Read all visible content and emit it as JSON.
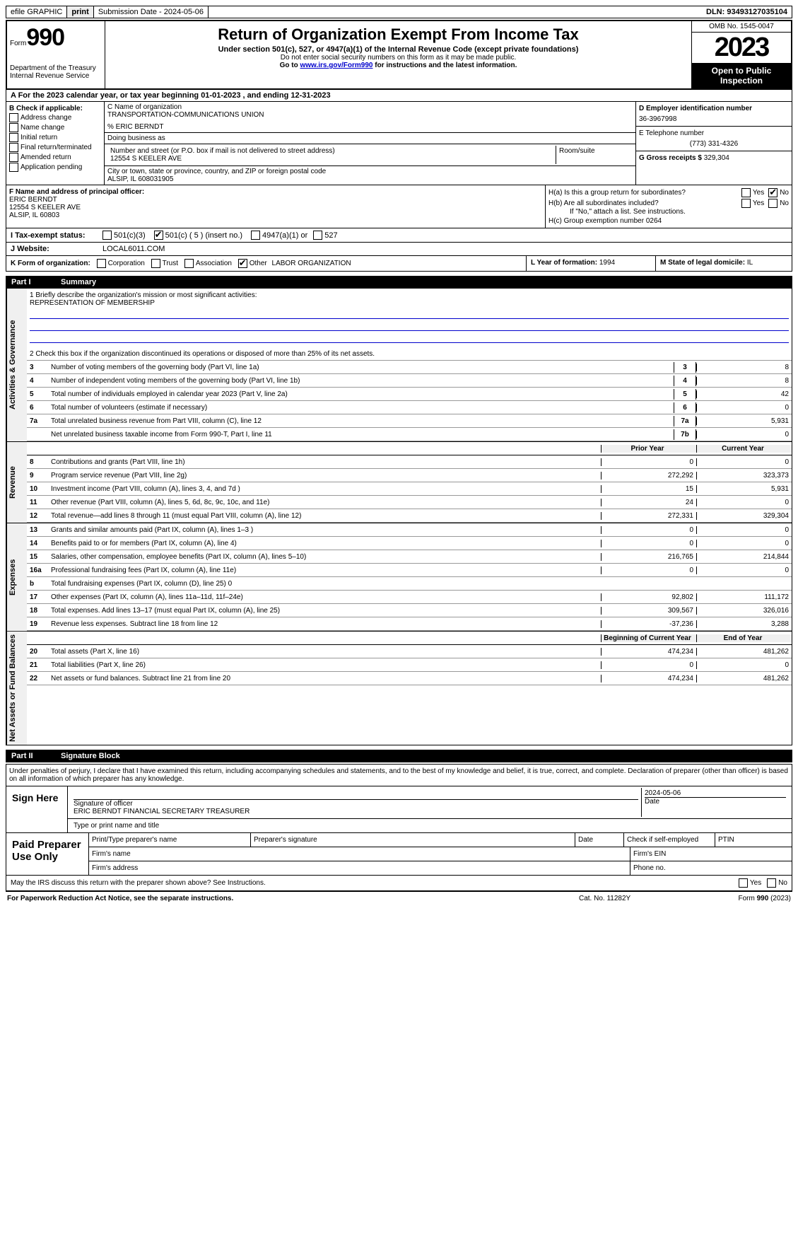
{
  "topbar": {
    "efile": "efile GRAPHIC",
    "print": "print",
    "submission": "Submission Date - 2024-05-06",
    "dln": "DLN: 93493127035104"
  },
  "header": {
    "form_label": "Form",
    "form_number": "990",
    "dept": "Department of the Treasury\nInternal Revenue Service",
    "title": "Return of Organization Exempt From Income Tax",
    "subtitle": "Under section 501(c), 527, or 4947(a)(1) of the Internal Revenue Code (except private foundations)",
    "warn1": "Do not enter social security numbers on this form as it may be made public.",
    "warn2_pre": "Go to ",
    "warn2_link": "www.irs.gov/Form990",
    "warn2_post": " for instructions and the latest information.",
    "omb": "OMB No. 1545-0047",
    "year": "2023",
    "open_pub": "Open to Public Inspection"
  },
  "row_a": "A For the 2023 calendar year, or tax year beginning 01-01-2023   , and ending 12-31-2023",
  "box_b": {
    "label": "B Check if applicable:",
    "items": [
      "Address change",
      "Name change",
      "Initial return",
      "Final return/terminated",
      "Amended return",
      "Application pending"
    ]
  },
  "box_c": {
    "name_label": "C Name of organization",
    "name": "TRANSPORTATION-COMMUNICATIONS UNION",
    "care_of": "% ERIC BERNDT",
    "dba_label": "Doing business as",
    "street_label": "Number and street (or P.O. box if mail is not delivered to street address)",
    "street": "12554 S KEELER AVE",
    "room_label": "Room/suite",
    "city_label": "City or town, state or province, country, and ZIP or foreign postal code",
    "city": "ALSIP, IL  608031905"
  },
  "box_d": {
    "label": "D Employer identification number",
    "value": "36-3967998"
  },
  "box_e": {
    "label": "E Telephone number",
    "value": "(773) 331-4326"
  },
  "box_g": {
    "label": "G Gross receipts $ ",
    "value": "329,304"
  },
  "box_f": {
    "label": "F  Name and address of principal officer:",
    "name": "ERIC BERNDT",
    "street": "12554 S KEELER AVE",
    "city": "ALSIP, IL  60803"
  },
  "box_h": {
    "ha": "H(a)  Is this a group return for subordinates?",
    "ha_no_checked": true,
    "hb": "H(b)  Are all subordinates included?",
    "hb_note": "If \"No,\" attach a list. See instructions.",
    "hc": "H(c)  Group exemption number   ",
    "hc_val": "0264"
  },
  "status": {
    "label_i": "I   Tax-exempt status:",
    "c3": "501(c)(3)",
    "c_other": "501(c) ( 5 ) (insert no.)",
    "c_other_checked": true,
    "a1": "4947(a)(1) or",
    "s527": "527"
  },
  "website": {
    "label": "J   Website:",
    "value": "LOCAL6011.COM"
  },
  "row_k": {
    "label": "K Form of organization:",
    "corp": "Corporation",
    "trust": "Trust",
    "assoc": "Association",
    "other": "Other",
    "other_checked": true,
    "other_text": "LABOR ORGANIZATION",
    "year_label": "L Year of formation: ",
    "year_val": "1994",
    "state_label": "M State of legal domicile: ",
    "state_val": "IL"
  },
  "part1": {
    "num": "Part I",
    "title": "Summary"
  },
  "mission": {
    "label": "1   Briefly describe the organization's mission or most significant activities:",
    "text": "REPRESENTATION OF MEMBERSHIP"
  },
  "line2": "2   Check this box        if the organization discontinued its operations or disposed of more than 25% of its net assets.",
  "summary_lines_gov": [
    {
      "n": "3",
      "d": "Number of voting members of the governing body (Part VI, line 1a)",
      "b": "3",
      "v": "8"
    },
    {
      "n": "4",
      "d": "Number of independent voting members of the governing body (Part VI, line 1b)",
      "b": "4",
      "v": "8"
    },
    {
      "n": "5",
      "d": "Total number of individuals employed in calendar year 2023 (Part V, line 2a)",
      "b": "5",
      "v": "42"
    },
    {
      "n": "6",
      "d": "Total number of volunteers (estimate if necessary)",
      "b": "6",
      "v": "0"
    },
    {
      "n": "7a",
      "d": "Total unrelated business revenue from Part VIII, column (C), line 12",
      "b": "7a",
      "v": "5,931"
    },
    {
      "n": "",
      "d": "Net unrelated business taxable income from Form 990-T, Part I, line 11",
      "b": "7b",
      "v": "0"
    }
  ],
  "rev_hdr": {
    "prior": "Prior Year",
    "current": "Current Year"
  },
  "summary_lines_rev": [
    {
      "n": "8",
      "d": "Contributions and grants (Part VIII, line 1h)",
      "p": "0",
      "c": "0"
    },
    {
      "n": "9",
      "d": "Program service revenue (Part VIII, line 2g)",
      "p": "272,292",
      "c": "323,373"
    },
    {
      "n": "10",
      "d": "Investment income (Part VIII, column (A), lines 3, 4, and 7d )",
      "p": "15",
      "c": "5,931"
    },
    {
      "n": "11",
      "d": "Other revenue (Part VIII, column (A), lines 5, 6d, 8c, 9c, 10c, and 11e)",
      "p": "24",
      "c": "0"
    },
    {
      "n": "12",
      "d": "Total revenue—add lines 8 through 11 (must equal Part VIII, column (A), line 12)",
      "p": "272,331",
      "c": "329,304"
    }
  ],
  "summary_lines_exp": [
    {
      "n": "13",
      "d": "Grants and similar amounts paid (Part IX, column (A), lines 1–3 )",
      "p": "0",
      "c": "0"
    },
    {
      "n": "14",
      "d": "Benefits paid to or for members (Part IX, column (A), line 4)",
      "p": "0",
      "c": "0"
    },
    {
      "n": "15",
      "d": "Salaries, other compensation, employee benefits (Part IX, column (A), lines 5–10)",
      "p": "216,765",
      "c": "214,844"
    },
    {
      "n": "16a",
      "d": "Professional fundraising fees (Part IX, column (A), line 11e)",
      "p": "0",
      "c": "0"
    },
    {
      "n": "b",
      "d": "Total fundraising expenses (Part IX, column (D), line 25) 0",
      "p": "",
      "c": "",
      "gray": true
    },
    {
      "n": "17",
      "d": "Other expenses (Part IX, column (A), lines 11a–11d, 11f–24e)",
      "p": "92,802",
      "c": "111,172"
    },
    {
      "n": "18",
      "d": "Total expenses. Add lines 13–17 (must equal Part IX, column (A), line 25)",
      "p": "309,567",
      "c": "326,016"
    },
    {
      "n": "19",
      "d": "Revenue less expenses. Subtract line 18 from line 12",
      "p": "-37,236",
      "c": "3,288"
    }
  ],
  "net_hdr": {
    "prior": "Beginning of Current Year",
    "current": "End of Year"
  },
  "summary_lines_net": [
    {
      "n": "20",
      "d": "Total assets (Part X, line 16)",
      "p": "474,234",
      "c": "481,262"
    },
    {
      "n": "21",
      "d": "Total liabilities (Part X, line 26)",
      "p": "0",
      "c": "0"
    },
    {
      "n": "22",
      "d": "Net assets or fund balances. Subtract line 21 from line 20",
      "p": "474,234",
      "c": "481,262"
    }
  ],
  "vtabs": {
    "gov": "Activities & Governance",
    "rev": "Revenue",
    "exp": "Expenses",
    "net": "Net Assets or Fund Balances"
  },
  "part2": {
    "num": "Part II",
    "title": "Signature Block"
  },
  "penalty": "Under penalties of perjury, I declare that I have examined this return, including accompanying schedules and statements, and to the best of my knowledge and belief, it is true, correct, and complete. Declaration of preparer (other than officer) is based on all information of which preparer has any knowledge.",
  "sign": {
    "here": "Sign Here",
    "sig_label": "Signature of officer",
    "name": "ERIC BERNDT  FINANCIAL SECRETARY TREASURER",
    "name_label": "Type or print name and title",
    "date": "2024-05-06",
    "date_label": "Date"
  },
  "prep": {
    "label": "Paid Preparer Use Only",
    "c1": "Print/Type preparer's name",
    "c2": "Preparer's signature",
    "c3": "Date",
    "c4": "Check        if self-employed",
    "c5": "PTIN",
    "firm_name": "Firm's name",
    "firm_ein": "Firm's EIN",
    "firm_addr": "Firm's address",
    "phone": "Phone no."
  },
  "discuss": "May the IRS discuss this return with the preparer shown above? See Instructions.",
  "footer": {
    "left": "For Paperwork Reduction Act Notice, see the separate instructions.",
    "mid": "Cat. No. 11282Y",
    "right_form": "Form ",
    "right_num": "990",
    "right_year": " (2023)"
  }
}
